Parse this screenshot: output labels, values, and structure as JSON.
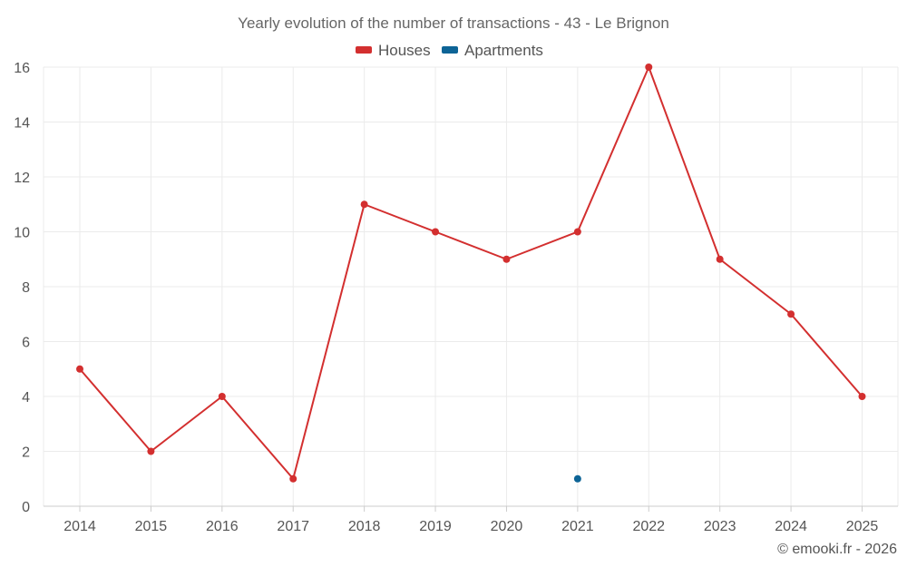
{
  "chart_data": {
    "type": "line",
    "title": "Yearly evolution of the number of transactions - 43 - Le Brignon",
    "categories": [
      "2014",
      "2015",
      "2016",
      "2017",
      "2018",
      "2019",
      "2020",
      "2021",
      "2022",
      "2023",
      "2024",
      "2025"
    ],
    "series": [
      {
        "name": "Houses",
        "color": "#d32f2f",
        "values": [
          5,
          2,
          4,
          1,
          11,
          10,
          9,
          10,
          16,
          9,
          7,
          4
        ]
      },
      {
        "name": "Apartments",
        "color": "#0d6496",
        "values": [
          null,
          null,
          null,
          null,
          null,
          null,
          null,
          1,
          null,
          null,
          null,
          null
        ]
      }
    ],
    "ylim": [
      0,
      16
    ],
    "yticks": [
      0,
      2,
      4,
      6,
      8,
      10,
      12,
      14,
      16
    ],
    "xlabel": "",
    "ylabel": "",
    "grid": true,
    "legend": "top-center"
  },
  "credit": "© emooki.fr - 2026"
}
